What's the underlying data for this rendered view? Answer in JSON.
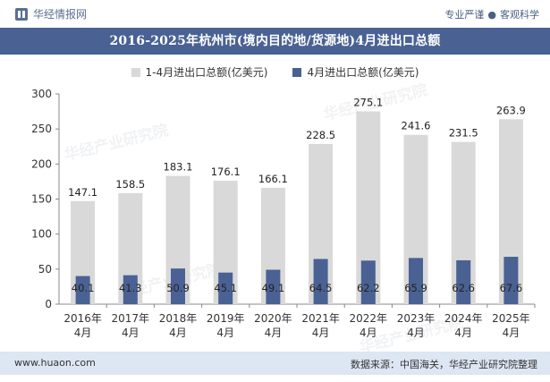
{
  "header": {
    "brand": "华经情报网",
    "tag_left": "专业严谨",
    "tag_sep": "●",
    "tag_right": "客观科学"
  },
  "footer": {
    "site": "www.huaon.com",
    "source": "数据来源：中国海关，华经产业研究院整理"
  },
  "watermark": "华经产业研究院",
  "colors": {
    "total": "#d9d9d9",
    "april": "#4a6193",
    "title_bg": "#4a6193",
    "footer_bg": "#dde6f3"
  },
  "chart_data": {
    "type": "bar",
    "title": "2016-2025年杭州市(境内目的地/货源地)4月进出口总额",
    "categories": [
      [
        "2016年",
        "4月"
      ],
      [
        "2017年",
        "4月"
      ],
      [
        "2018年",
        "4月"
      ],
      [
        "2019年",
        "4月"
      ],
      [
        "2020年",
        "4月"
      ],
      [
        "2021年",
        "4月"
      ],
      [
        "2022年",
        "4月"
      ],
      [
        "2023年",
        "4月"
      ],
      [
        "2024年",
        "4月"
      ],
      [
        "2025年",
        "4月"
      ]
    ],
    "series": [
      {
        "name": "1-4月进出口总额(亿美元)",
        "values": [
          147.1,
          158.5,
          183.1,
          176.1,
          166.1,
          228.5,
          275.1,
          241.6,
          231.5,
          263.9
        ]
      },
      {
        "name": "4月进出口总额(亿美元)",
        "values": [
          40.1,
          41.3,
          50.9,
          45.1,
          49.1,
          64.5,
          62.2,
          65.9,
          62.6,
          67.6
        ]
      }
    ],
    "ylim": [
      0,
      300
    ],
    "yticks": [
      0,
      50,
      100,
      150,
      200,
      250,
      300
    ],
    "grid": false,
    "legend": "top-center"
  }
}
